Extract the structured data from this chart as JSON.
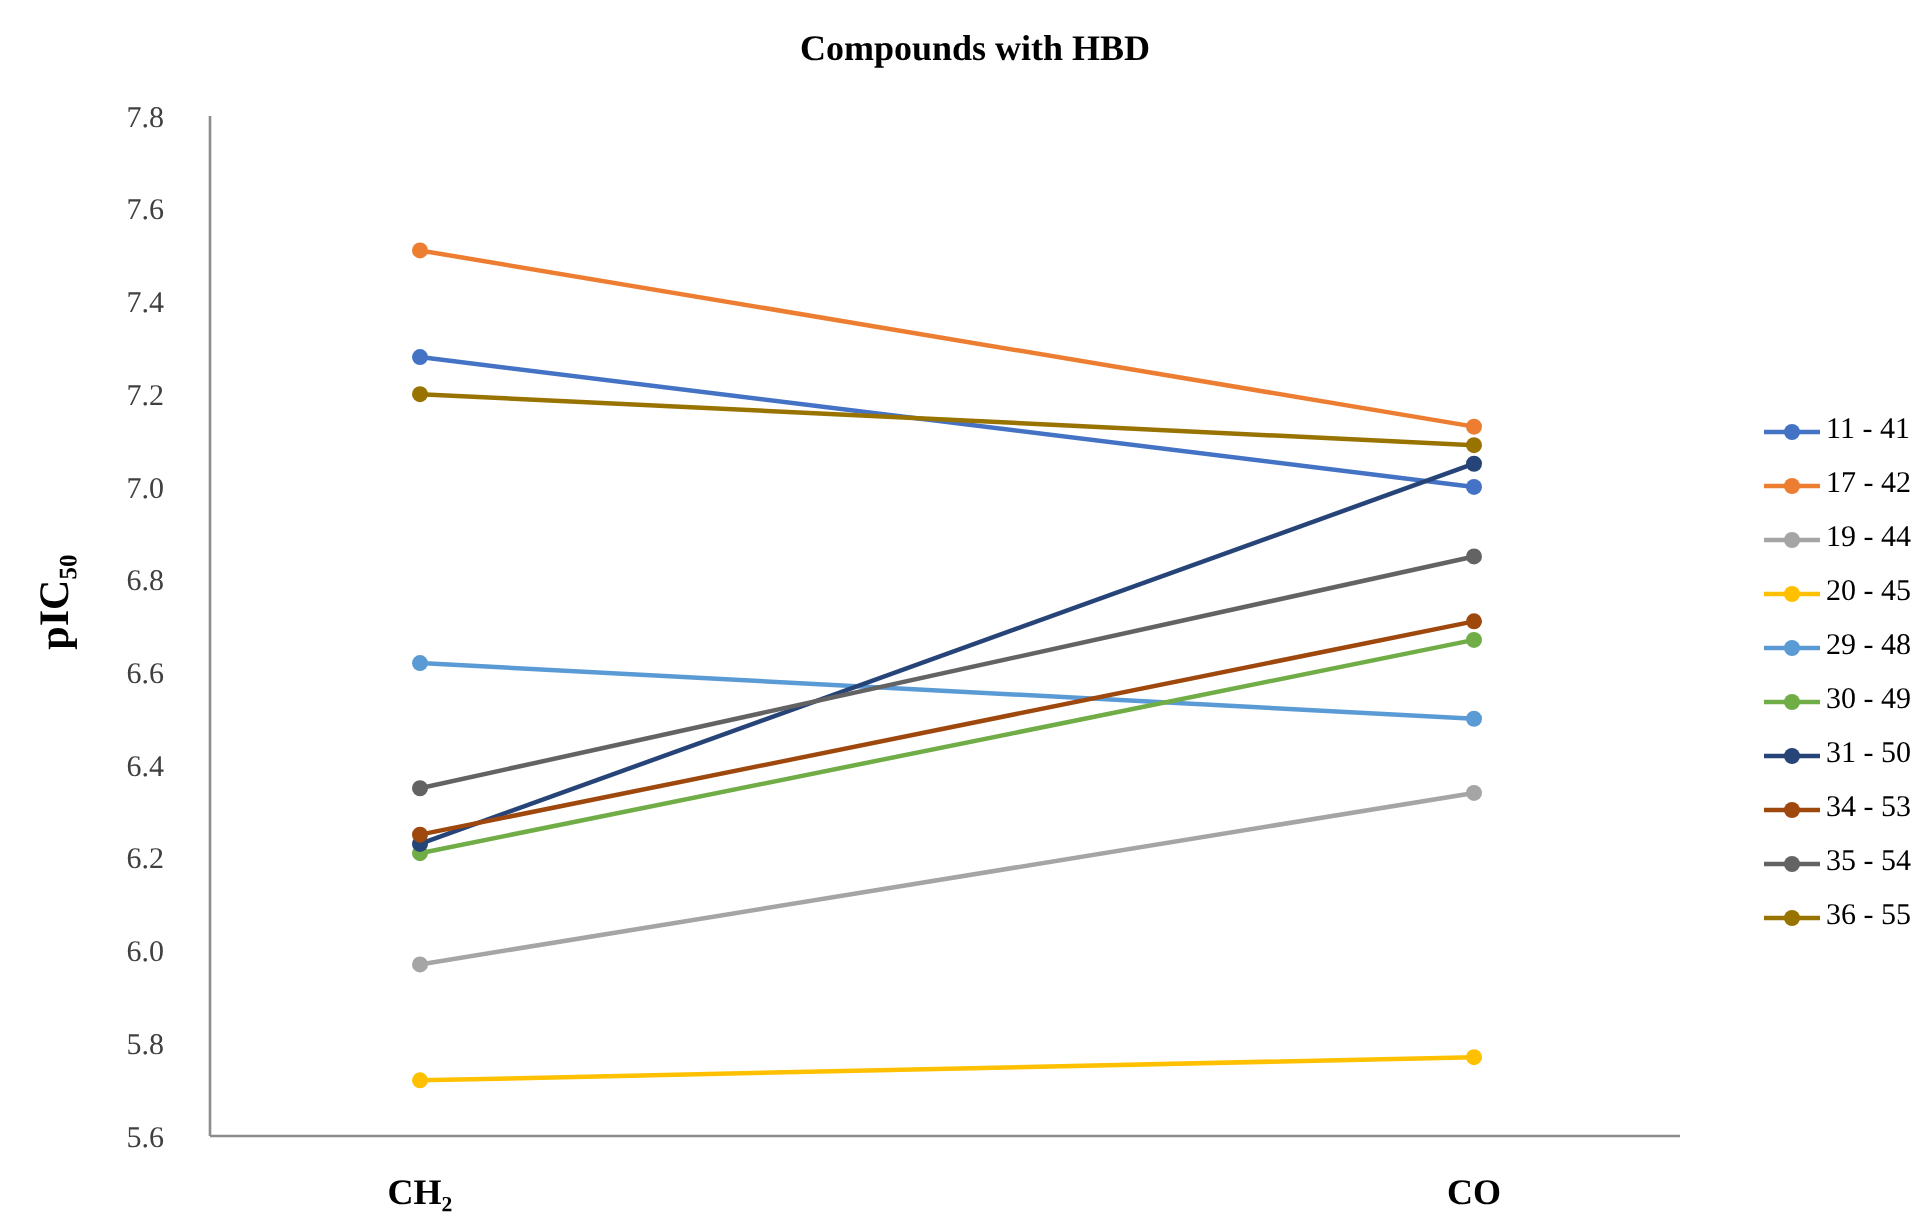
{
  "chart_data": {
    "type": "line",
    "title": "Compounds with HBD",
    "ylabel": "pIC₅₀",
    "categories": [
      "CH₂",
      "CO"
    ],
    "series": [
      {
        "name": "11 - 41",
        "color": "#4472c4",
        "values": [
          7.28,
          7.0
        ]
      },
      {
        "name": "17 - 42",
        "color": "#ed7d31",
        "values": [
          7.51,
          7.13
        ]
      },
      {
        "name": "19 - 44",
        "color": "#a5a5a5",
        "values": [
          5.97,
          6.34
        ]
      },
      {
        "name": "20 - 45",
        "color": "#ffc000",
        "values": [
          5.72,
          5.77
        ]
      },
      {
        "name": "29 - 48",
        "color": "#5b9bd5",
        "values": [
          6.62,
          6.5
        ]
      },
      {
        "name": "30 - 49",
        "color": "#70ad47",
        "values": [
          6.21,
          6.67
        ]
      },
      {
        "name": "31 - 50",
        "color": "#264478",
        "values": [
          6.23,
          7.05
        ]
      },
      {
        "name": "34 - 53",
        "color": "#9e480e",
        "values": [
          6.25,
          6.71
        ]
      },
      {
        "name": "35 - 54",
        "color": "#636363",
        "values": [
          6.35,
          6.85
        ]
      },
      {
        "name": "36 - 55",
        "color": "#997300",
        "values": [
          7.2,
          7.09
        ]
      }
    ],
    "ylim": [
      5.6,
      7.8
    ],
    "yticks": [
      5.6,
      5.8,
      {
        "value": 6,
        "label": "6.0"
      },
      6.2,
      6.4,
      6.6,
      6.8,
      {
        "value": 7,
        "label": "7.0"
      },
      7.2,
      7.4,
      7.6,
      7.8
    ],
    "legend": "right",
    "marker": "circle"
  }
}
